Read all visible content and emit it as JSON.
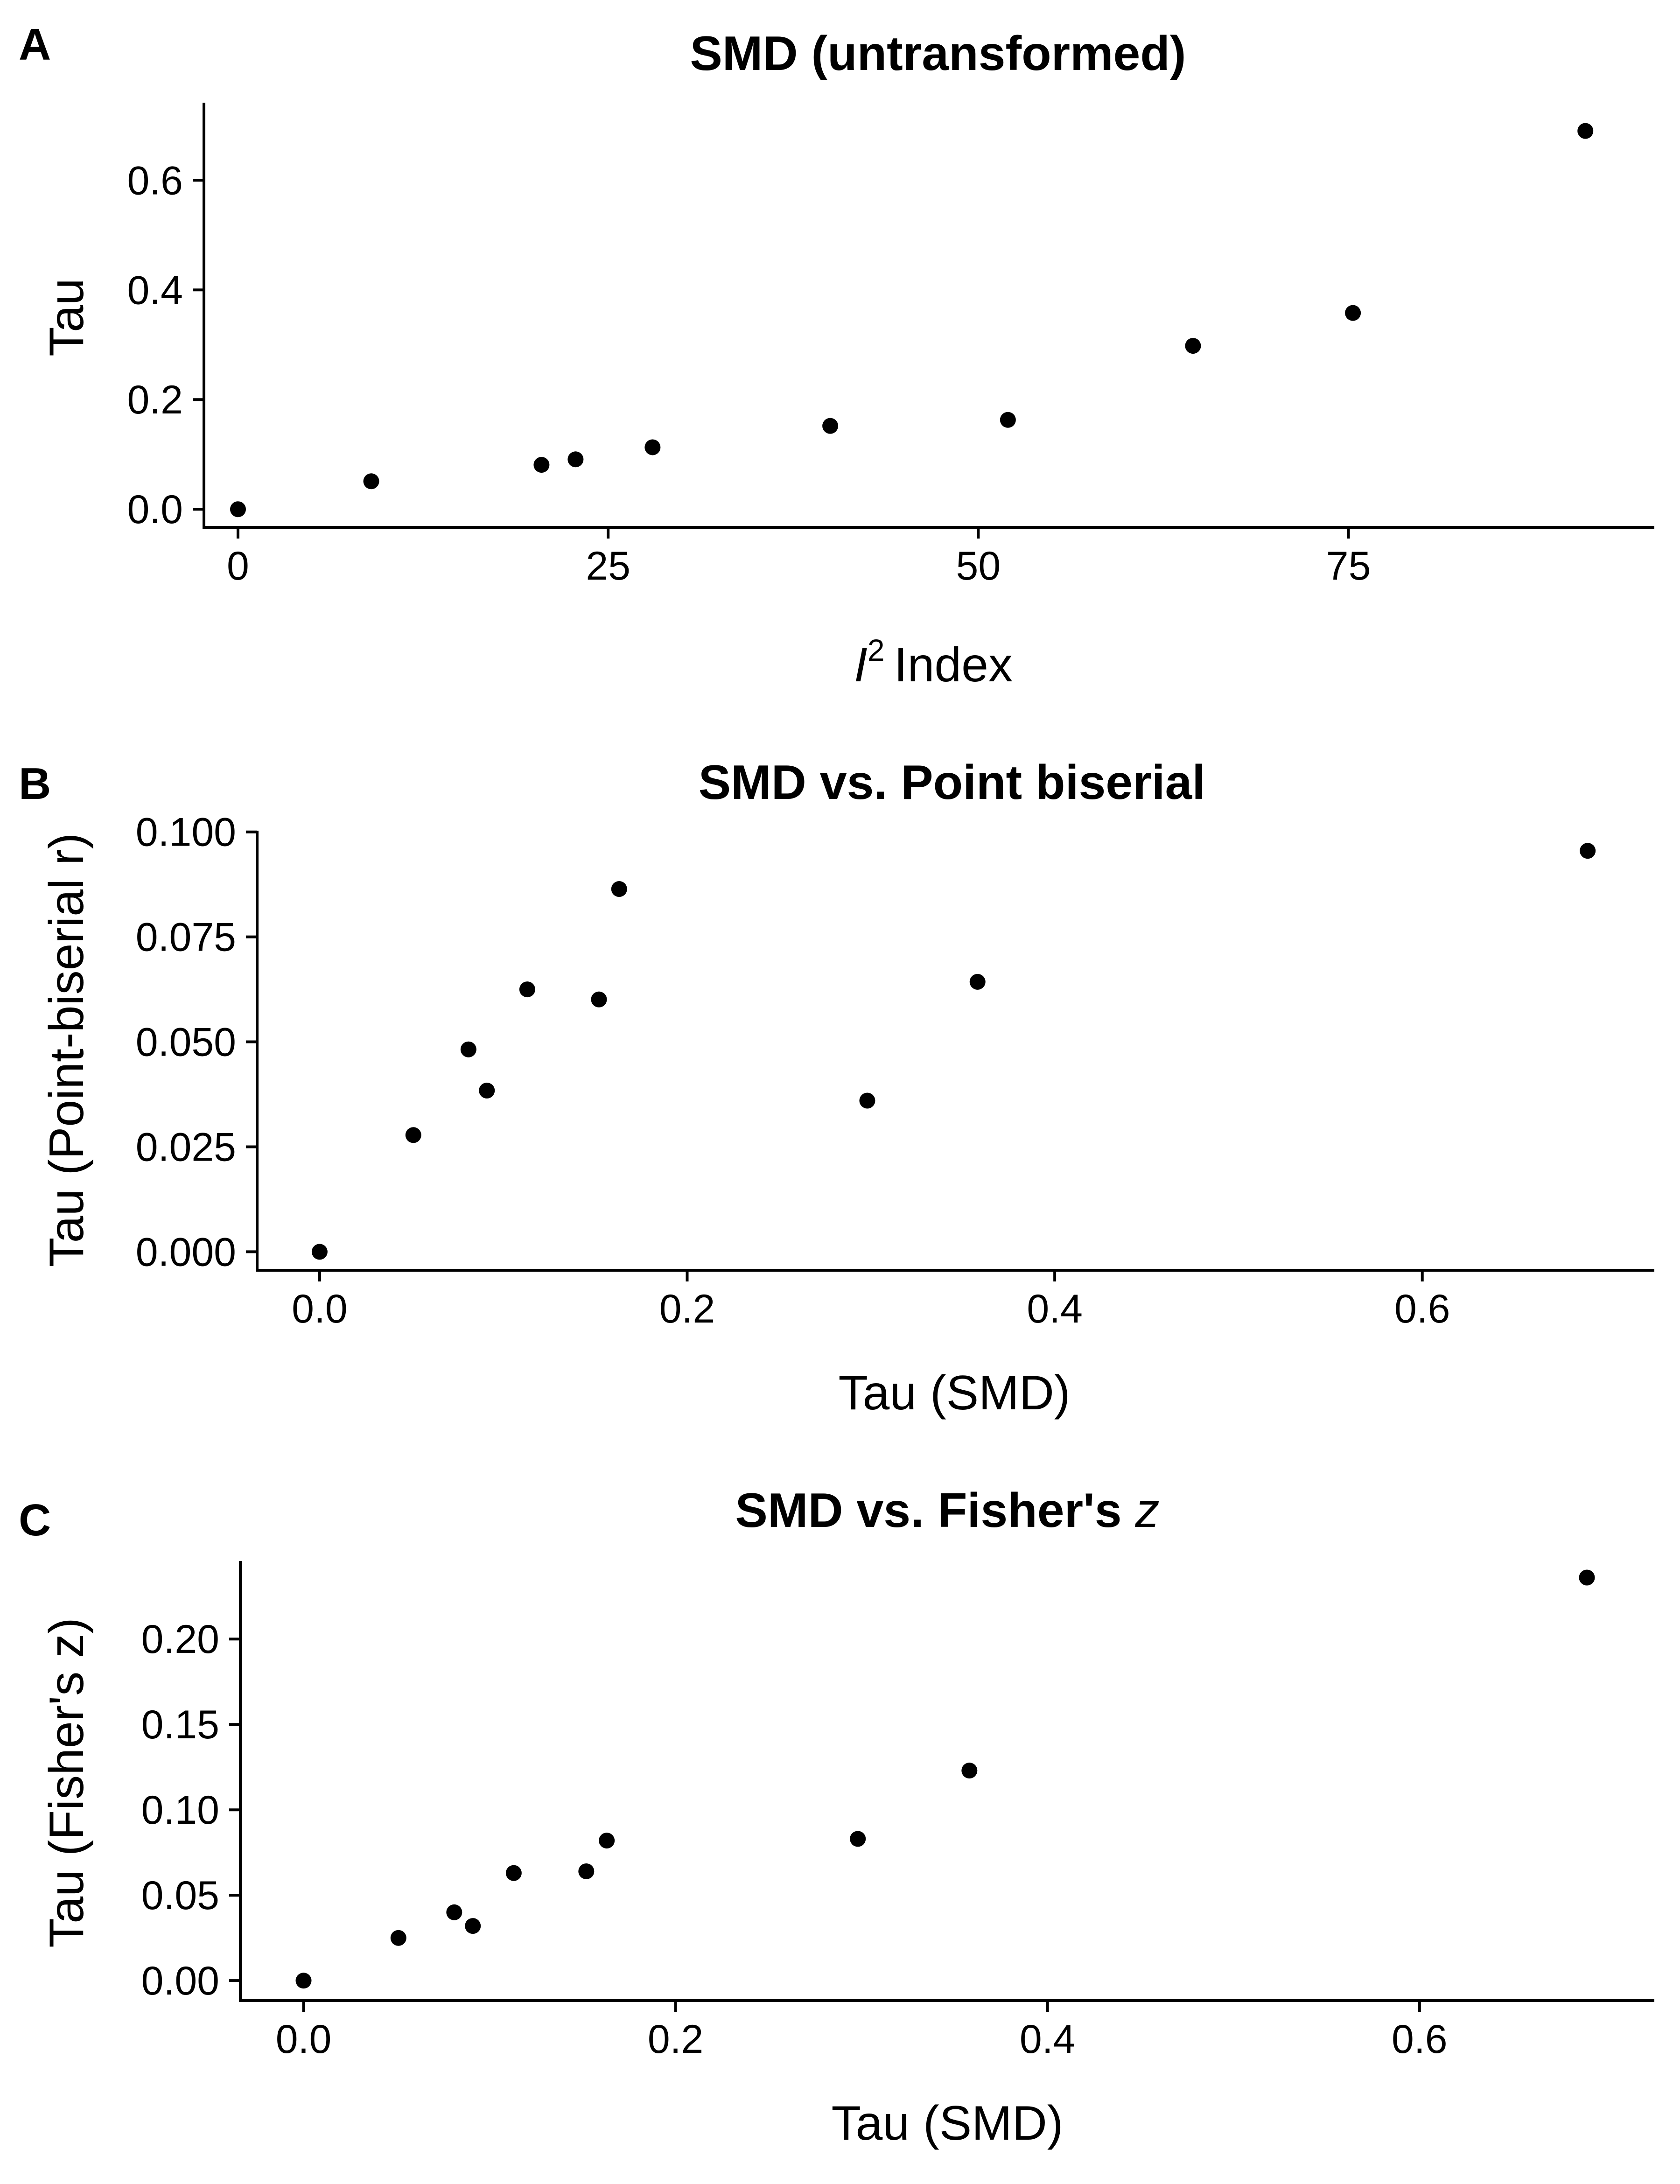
{
  "chart_data": [
    {
      "panel": "A",
      "type": "scatter",
      "title": "SMD (untransformed)",
      "title_italic": "",
      "xlabel": "Index",
      "xlabel_prefix": "I",
      "xlabel_sup": "2",
      "ylabel": "Tau",
      "xlim": [
        -2.3,
        95.5
      ],
      "ylim": [
        -0.033,
        0.733
      ],
      "xticks": [
        0,
        25,
        50,
        75
      ],
      "xtick_labels": [
        "0",
        "25",
        "50",
        "75"
      ],
      "yticks": [
        0.0,
        0.2,
        0.4,
        0.6
      ],
      "ytick_labels": [
        "0.0",
        "0.2",
        "0.4",
        "0.6"
      ],
      "grid": false,
      "points": [
        {
          "x": 0.0,
          "y": 0.0
        },
        {
          "x": 9.0,
          "y": 0.051
        },
        {
          "x": 20.5,
          "y": 0.081
        },
        {
          "x": 22.8,
          "y": 0.091
        },
        {
          "x": 28.0,
          "y": 0.113
        },
        {
          "x": 40.0,
          "y": 0.152
        },
        {
          "x": 52.0,
          "y": 0.163
        },
        {
          "x": 64.5,
          "y": 0.298
        },
        {
          "x": 75.3,
          "y": 0.358
        },
        {
          "x": 91.0,
          "y": 0.69
        }
      ]
    },
    {
      "panel": "B",
      "type": "scatter",
      "title": "SMD vs. Point biserial",
      "title_italic": "",
      "xlabel": "Tau (SMD)",
      "xlabel_prefix": "",
      "xlabel_sup": "",
      "ylabel": "Tau (Point-biserial r)",
      "xlim": [
        -0.034,
        0.725
      ],
      "ylim": [
        -0.0044,
        0.1003
      ],
      "xticks": [
        0.0,
        0.2,
        0.4,
        0.6
      ],
      "xtick_labels": [
        "0.0",
        "0.2",
        "0.4",
        "0.6"
      ],
      "yticks": [
        0.0,
        0.025,
        0.05,
        0.075,
        0.1
      ],
      "ytick_labels": [
        "0.000",
        "0.025",
        "0.050",
        "0.075",
        "0.100"
      ],
      "grid": false,
      "points": [
        {
          "x": 0.0,
          "y": 0.0
        },
        {
          "x": 0.051,
          "y": 0.0278
        },
        {
          "x": 0.081,
          "y": 0.0482
        },
        {
          "x": 0.091,
          "y": 0.0384
        },
        {
          "x": 0.113,
          "y": 0.0625
        },
        {
          "x": 0.152,
          "y": 0.0601
        },
        {
          "x": 0.163,
          "y": 0.0864
        },
        {
          "x": 0.298,
          "y": 0.036
        },
        {
          "x": 0.358,
          "y": 0.0643
        },
        {
          "x": 0.69,
          "y": 0.0955
        }
      ]
    },
    {
      "panel": "C",
      "type": "scatter",
      "title": "SMD vs. Fisher's ",
      "title_italic": "z",
      "xlabel": "Tau (SMD)",
      "xlabel_prefix": "",
      "xlabel_sup": "",
      "ylabel": "Tau (Fisher's z)",
      "xlim": [
        -0.034,
        0.725
      ],
      "ylim": [
        -0.0117,
        0.2457
      ],
      "xticks": [
        0.0,
        0.2,
        0.4,
        0.6
      ],
      "xtick_labels": [
        "0.0",
        "0.2",
        "0.4",
        "0.6"
      ],
      "yticks": [
        0.0,
        0.05,
        0.1,
        0.15,
        0.2
      ],
      "ytick_labels": [
        "0.00",
        "0.05",
        "0.10",
        "0.15",
        "0.20"
      ],
      "grid": false,
      "points": [
        {
          "x": 0.0,
          "y": 0.0
        },
        {
          "x": 0.051,
          "y": 0.025
        },
        {
          "x": 0.081,
          "y": 0.04
        },
        {
          "x": 0.091,
          "y": 0.032
        },
        {
          "x": 0.113,
          "y": 0.063
        },
        {
          "x": 0.152,
          "y": 0.064
        },
        {
          "x": 0.163,
          "y": 0.082
        },
        {
          "x": 0.298,
          "y": 0.083
        },
        {
          "x": 0.358,
          "y": 0.123
        },
        {
          "x": 0.69,
          "y": 0.236
        }
      ]
    }
  ]
}
